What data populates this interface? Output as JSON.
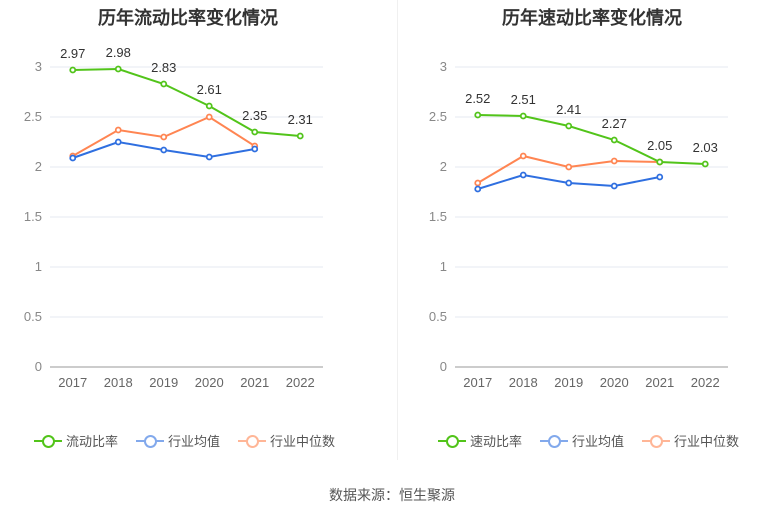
{
  "chart_data": [
    {
      "type": "line",
      "title": "历年流动比率变化情况",
      "categories": [
        "2017",
        "2018",
        "2019",
        "2020",
        "2021",
        "2022"
      ],
      "ylim": [
        0,
        3
      ],
      "yticks": [
        "0",
        "0.5",
        "1",
        "1.5",
        "2",
        "2.5",
        "3"
      ],
      "grid": true,
      "legend": "bottom",
      "series": [
        {
          "name": "流动比率",
          "color": "#52c41a",
          "values": [
            2.97,
            2.98,
            2.83,
            2.61,
            2.35,
            2.31
          ],
          "labels": [
            "2.97",
            "2.98",
            "2.83",
            "2.61",
            "2.35",
            "2.31"
          ]
        },
        {
          "name": "行业均值",
          "color": "#2f6fe0",
          "values": [
            2.09,
            2.25,
            2.17,
            2.1,
            2.18,
            null
          ]
        },
        {
          "name": "行业中位数",
          "color": "#ff8552",
          "values": [
            2.11,
            2.37,
            2.3,
            2.5,
            2.21,
            null
          ]
        }
      ]
    },
    {
      "type": "line",
      "title": "历年速动比率变化情况",
      "categories": [
        "2017",
        "2018",
        "2019",
        "2020",
        "2021",
        "2022"
      ],
      "ylim": [
        0,
        3
      ],
      "yticks": [
        "0",
        "0.5",
        "1",
        "1.5",
        "2",
        "2.5",
        "3"
      ],
      "grid": true,
      "legend": "bottom",
      "series": [
        {
          "name": "速动比率",
          "color": "#52c41a",
          "values": [
            2.52,
            2.51,
            2.41,
            2.27,
            2.05,
            2.03
          ],
          "labels": [
            "2.52",
            "2.51",
            "2.41",
            "2.27",
            "2.05",
            "2.03"
          ]
        },
        {
          "name": "行业均值",
          "color": "#2f6fe0",
          "values": [
            1.78,
            1.92,
            1.84,
            1.81,
            1.9,
            null
          ]
        },
        {
          "name": "行业中位数",
          "color": "#ff8552",
          "values": [
            1.84,
            2.11,
            2.0,
            2.06,
            2.05,
            null
          ]
        }
      ]
    }
  ],
  "source": "数据来源：恒生聚源"
}
